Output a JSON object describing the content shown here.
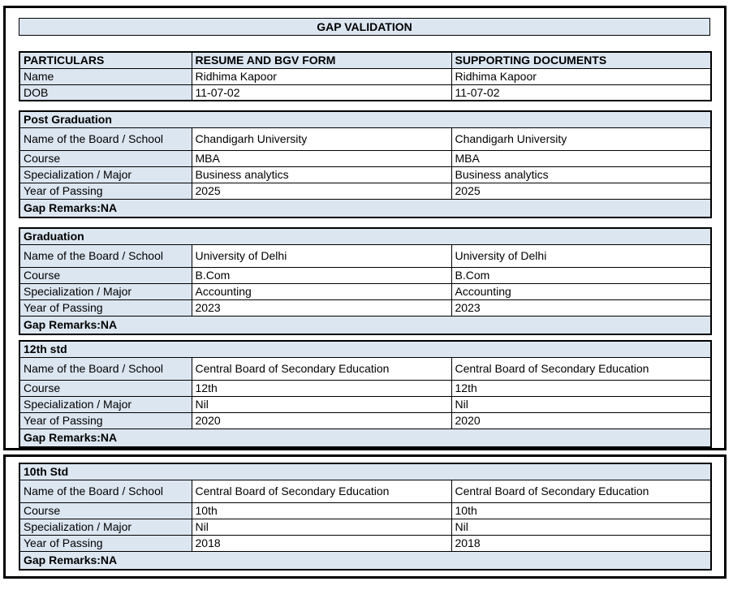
{
  "title": "GAP VALIDATION",
  "table_headers": [
    "PARTICULARS",
    "RESUME AND BGV FORM",
    "SUPPORTING DOCUMENTS"
  ],
  "personal": {
    "rows": [
      {
        "label": "Name",
        "resume": "Ridhima Kapoor",
        "supporting": "Ridhima Kapoor"
      },
      {
        "label": "DOB",
        "resume": "11-07-02",
        "supporting": "11-07-02"
      }
    ]
  },
  "sections": [
    {
      "title": "Post Graduation",
      "rows": [
        {
          "label": "Name of the Board / School",
          "resume": "Chandigarh University",
          "supporting": "Chandigarh University"
        },
        {
          "label": "Course",
          "resume": "MBA",
          "supporting": "MBA"
        },
        {
          "label": "Specialization / Major",
          "resume": "Business analytics",
          "supporting": "Business analytics"
        },
        {
          "label": "Year of Passing",
          "resume": "2025",
          "supporting": "2025"
        }
      ],
      "gap_remarks": "Gap Remarks:NA"
    },
    {
      "title": "Graduation",
      "rows": [
        {
          "label": "Name of the Board / School",
          "resume": "University of Delhi",
          "supporting": "University of Delhi"
        },
        {
          "label": "Course",
          "resume": "B.Com",
          "supporting": "B.Com"
        },
        {
          "label": "Specialization / Major",
          "resume": "Accounting",
          "supporting": "Accounting"
        },
        {
          "label": "Year of Passing",
          "resume": "2023",
          "supporting": "2023"
        }
      ],
      "gap_remarks": "Gap Remarks:NA"
    },
    {
      "title": "12th std",
      "rows": [
        {
          "label": "Name of the Board / School",
          "resume": "Central Board of Secondary Education",
          "supporting": "Central Board of Secondary Education"
        },
        {
          "label": "Course",
          "resume": "12th",
          "supporting": "12th"
        },
        {
          "label": "Specialization / Major",
          "resume": "Nil",
          "supporting": "Nil"
        },
        {
          "label": "Year of Passing",
          "resume": "2020",
          "supporting": "2020"
        }
      ],
      "gap_remarks": "Gap Remarks:NA"
    },
    {
      "title": "10th Std",
      "rows": [
        {
          "label": "Name of the Board / School",
          "resume": "Central Board of Secondary Education",
          "supporting": "Central Board of Secondary Education"
        },
        {
          "label": "Course",
          "resume": "10th",
          "supporting": "10th"
        },
        {
          "label": "Specialization / Major",
          "resume": "Nil",
          "supporting": "Nil"
        },
        {
          "label": "Year of Passing",
          "resume": "2018",
          "supporting": "2018"
        }
      ],
      "gap_remarks": "Gap Remarks:NA"
    }
  ],
  "colors": {
    "fill": "#dce6f1",
    "border": "#000000"
  }
}
